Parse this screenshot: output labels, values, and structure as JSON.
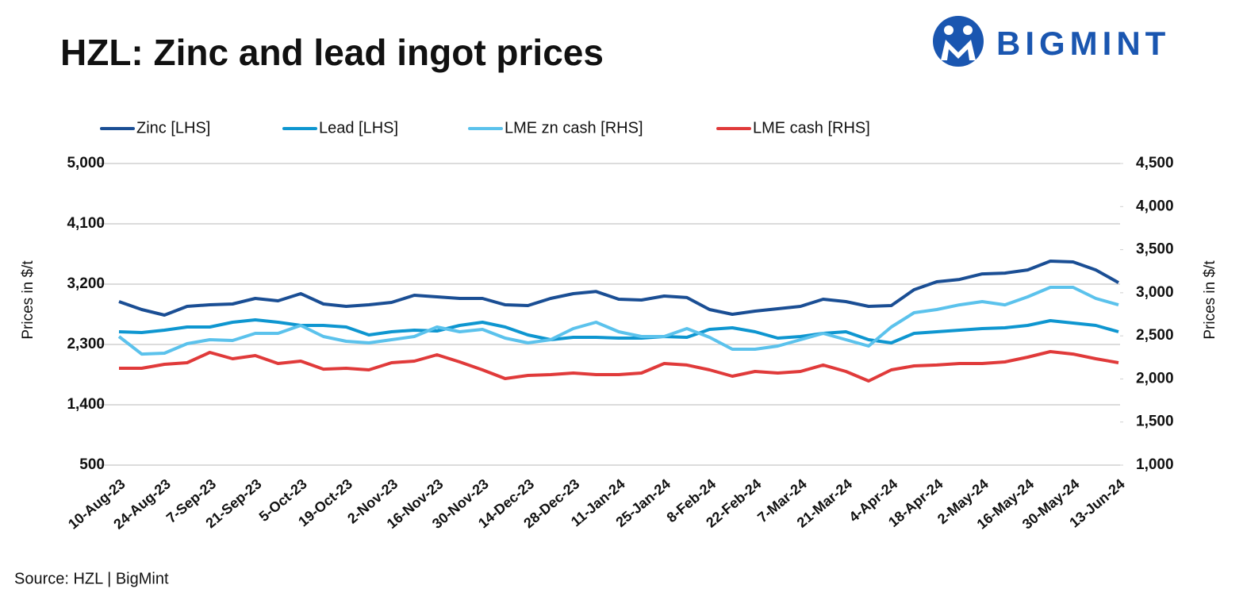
{
  "chart_data": {
    "type": "line",
    "title": "HZL: Zinc and lead ingot prices",
    "logo": "BIGMINT",
    "source": "Source: HZL | BigMint",
    "y_label": "Prices in $/t",
    "y2_label": "Prices in $/t",
    "grid": true,
    "legend": "top",
    "categories": [
      "10-Aug-23",
      null,
      "24-Aug-23",
      null,
      "7-Sep-23",
      null,
      "21-Sep-23",
      null,
      "5-Oct-23",
      null,
      "19-Oct-23",
      null,
      "2-Nov-23",
      null,
      "16-Nov-23",
      null,
      "30-Nov-23",
      null,
      "14-Dec-23",
      null,
      "28-Dec-23",
      null,
      "11-Jan-24",
      null,
      "25-Jan-24",
      null,
      "8-Feb-24",
      null,
      "22-Feb-24",
      null,
      "7-Mar-24",
      null,
      "21-Mar-24",
      null,
      "4-Apr-24",
      null,
      "18-Apr-24",
      null,
      "2-May-24",
      null,
      "16-May-24",
      null,
      "30-May-24",
      null,
      "13-Jun-24"
    ],
    "ylim": [
      500,
      5000
    ],
    "yticks": [
      500,
      {
        "value": 1400,
        "label": "1,400"
      },
      {
        "value": 2300,
        "label": "2,300"
      },
      {
        "value": 3200,
        "label": "3,200"
      },
      {
        "value": 4100,
        "label": "4,100"
      },
      {
        "value": 5000,
        "label": "5,000"
      }
    ],
    "y2lim": [
      1000,
      4500
    ],
    "y2ticks": [
      {
        "value": 1000,
        "label": "1,000"
      },
      {
        "value": 1500,
        "label": "1,500"
      },
      {
        "value": 2000,
        "label": "2,000"
      },
      {
        "value": 2500,
        "label": "2,500"
      },
      {
        "value": 3000,
        "label": "3,000"
      },
      {
        "value": 3500,
        "label": "3,500"
      },
      {
        "value": 4000,
        "label": "4,000"
      },
      {
        "value": 4500,
        "label": "4,500"
      }
    ],
    "series": [
      {
        "name": "Zinc [LHS]",
        "color": "#1a4e94",
        "values": [
          2939,
          2821,
          2738,
          2868,
          2892,
          2904,
          2987,
          2951,
          3058,
          2904,
          2868,
          2892,
          2928,
          3034,
          3010,
          2987,
          2987,
          2892,
          2880,
          2987,
          3058,
          3090,
          2975,
          2963,
          3022,
          3000,
          2821,
          2750,
          2797,
          2833,
          2868,
          2975,
          2939,
          2868,
          2880,
          3117,
          3235,
          3270,
          3353,
          3365,
          3412,
          3543,
          3531,
          3412,
          3223
        ]
      },
      {
        "name": "Lead [LHS]",
        "color": "#0e96d0",
        "values": [
          2489,
          2478,
          2513,
          2560,
          2560,
          2632,
          2667,
          2632,
          2584,
          2584,
          2560,
          2442,
          2489,
          2513,
          2501,
          2584,
          2632,
          2560,
          2442,
          2371,
          2407,
          2407,
          2395,
          2395,
          2418,
          2407,
          2525,
          2549,
          2489,
          2395,
          2418,
          2466,
          2489,
          2371,
          2324,
          2466,
          2489,
          2513,
          2537,
          2549,
          2584,
          2655,
          2620,
          2584,
          2489
        ]
      },
      {
        "name": "LME zn cash [RHS]",
        "color": "#5bc2ec",
        "axis": "y2",
        "values": [
          2492,
          2289,
          2299,
          2409,
          2455,
          2446,
          2529,
          2529,
          2621,
          2492,
          2437,
          2418,
          2455,
          2492,
          2603,
          2547,
          2575,
          2474,
          2418,
          2455,
          2584,
          2658,
          2547,
          2492,
          2492,
          2584,
          2483,
          2345,
          2345,
          2382,
          2455,
          2529,
          2455,
          2382,
          2603,
          2768,
          2805,
          2860,
          2897,
          2860,
          2953,
          3063,
          3063,
          2934,
          2860
        ]
      },
      {
        "name": "LME cash [RHS]",
        "color": "#e03a3a",
        "axis": "y2",
        "values": [
          2124,
          2124,
          2170,
          2188,
          2308,
          2234,
          2271,
          2179,
          2207,
          2114,
          2124,
          2105,
          2188,
          2207,
          2280,
          2197,
          2105,
          2004,
          2041,
          2050,
          2068,
          2050,
          2050,
          2068,
          2179,
          2161,
          2105,
          2032,
          2087,
          2068,
          2087,
          2161,
          2087,
          1976,
          2105,
          2151,
          2161,
          2179,
          2179,
          2197,
          2253,
          2317,
          2289,
          2234,
          2188
        ]
      }
    ]
  }
}
